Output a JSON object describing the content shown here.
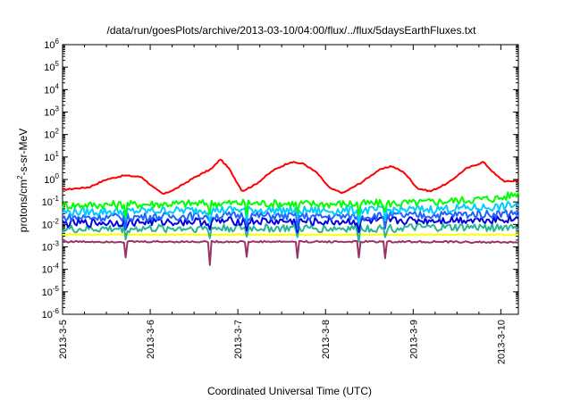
{
  "chart_data": {
    "type": "line",
    "title": "/data/run/goesPlots/archive/2013-03-10/04:00/flux/../flux/5daysEarthFluxes.txt",
    "xlabel": "Coordinated Universal Time (UTC)",
    "ylabel": {
      "base": "protons/cm",
      "sup": "2",
      "rest": "-s-sr-MeV"
    },
    "x_ticks": [
      "2013-3-5",
      "2013-3-6",
      "2013-3-7",
      "2013-3-8",
      "2013-3-9",
      "2013-3-10"
    ],
    "xlim_days": [
      0,
      5.2
    ],
    "y_scale": "log",
    "y_ticks": [
      {
        "base": "10",
        "exp": "-6"
      },
      {
        "base": "10",
        "exp": "-5"
      },
      {
        "base": "10",
        "exp": "-4"
      },
      {
        "base": "10",
        "exp": "-3"
      },
      {
        "base": "10",
        "exp": "-2"
      },
      {
        "base": "10",
        "exp": "-1"
      },
      {
        "base": "10",
        "exp": "0"
      },
      {
        "base": "10",
        "exp": "1"
      },
      {
        "base": "10",
        "exp": "2"
      },
      {
        "base": "10",
        "exp": "3"
      },
      {
        "base": "10",
        "exp": "4"
      },
      {
        "base": "10",
        "exp": "5"
      },
      {
        "base": "10",
        "exp": "6"
      }
    ],
    "ylim": [
      1e-06,
      1000000.0
    ],
    "grid": false,
    "legend": "none",
    "series": [
      {
        "color": "#ff0000",
        "x": [
          0,
          0.3,
          0.5,
          0.7,
          0.9,
          1.05,
          1.15,
          1.3,
          1.5,
          1.7,
          1.8,
          1.9,
          2.05,
          2.2,
          2.4,
          2.6,
          2.75,
          2.9,
          3.05,
          3.2,
          3.4,
          3.6,
          3.75,
          3.9,
          4.05,
          4.2,
          4.4,
          4.6,
          4.8,
          4.95,
          5.05,
          5.2
        ],
        "y": [
          0.35,
          0.45,
          1.0,
          1.5,
          1.3,
          0.4,
          0.22,
          0.4,
          1.2,
          3.0,
          8.0,
          3.0,
          0.3,
          0.6,
          2.5,
          6.0,
          5.0,
          2.0,
          0.4,
          0.25,
          0.7,
          2.5,
          4.0,
          2.0,
          0.4,
          0.3,
          0.7,
          3.0,
          6.0,
          1.5,
          0.8,
          0.9
        ]
      },
      {
        "color": "#00ff00",
        "x": [
          0,
          1,
          2,
          3,
          4,
          5,
          5.2
        ],
        "y": [
          0.07,
          0.08,
          0.09,
          0.08,
          0.09,
          0.15,
          0.25
        ]
      },
      {
        "color": "#00ccff",
        "x": [
          0,
          1,
          2,
          3,
          4,
          5,
          5.2
        ],
        "y": [
          0.035,
          0.04,
          0.045,
          0.04,
          0.045,
          0.06,
          0.08
        ]
      },
      {
        "color": "#1e64ff",
        "x": [
          0,
          1,
          2,
          3,
          4,
          5,
          5.2
        ],
        "y": [
          0.02,
          0.022,
          0.025,
          0.022,
          0.025,
          0.03,
          0.035
        ]
      },
      {
        "color": "#0000e0",
        "x": [
          0,
          1,
          2,
          3,
          4,
          5,
          5.2
        ],
        "y": [
          0.011,
          0.013,
          0.014,
          0.013,
          0.015,
          0.017,
          0.018
        ]
      },
      {
        "color": "#28b496",
        "x": [
          0,
          1,
          2,
          3,
          4,
          5,
          5.2
        ],
        "y": [
          0.006,
          0.0065,
          0.007,
          0.0065,
          0.007,
          0.0075,
          0.008
        ]
      },
      {
        "color": "#ffff00",
        "x": [
          0,
          1,
          2,
          3,
          4,
          5,
          5.2
        ],
        "y": [
          0.0035,
          0.0035,
          0.0035,
          0.0035,
          0.0035,
          0.0035,
          0.0035
        ]
      },
      {
        "color": "#993366",
        "x": [
          0,
          1,
          2,
          3,
          4,
          5,
          5.2
        ],
        "y": [
          0.0017,
          0.0017,
          0.0017,
          0.0017,
          0.0017,
          0.0016,
          0.0016
        ]
      }
    ]
  }
}
